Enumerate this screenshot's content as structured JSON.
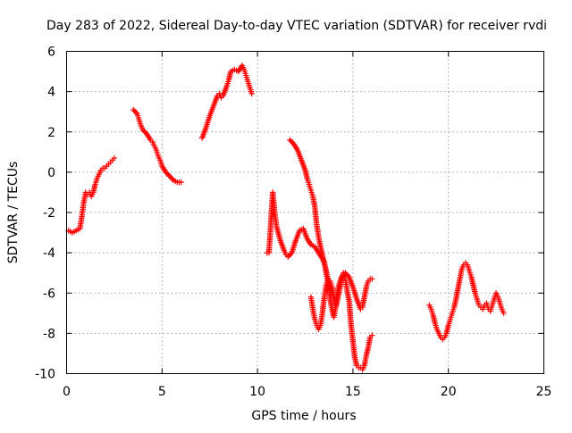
{
  "chart_data": {
    "type": "scatter",
    "title": "Day 283 of 2022, Sidereal Day-to-day VTEC variation (SDTVAR) for receiver rvdi",
    "xlabel": "GPS time / hours",
    "ylabel": "SDTVAR / TECUs",
    "xlim": [
      0,
      25
    ],
    "ylim": [
      -10,
      6
    ],
    "xticks": [
      "0",
      "5",
      "10",
      "15",
      "20",
      "25"
    ],
    "yticks": [
      "-10",
      "-8",
      "-6",
      "-4",
      "-2",
      "0",
      "2",
      "4",
      "6"
    ],
    "grid": true,
    "legend": "none",
    "marker": "plus",
    "color": "#ff0000",
    "series": [
      {
        "x": [
          0.1,
          0.3,
          0.5,
          0.7,
          0.8,
          0.9,
          1.0,
          1.1,
          1.2,
          1.3,
          1.4,
          1.5,
          1.6,
          1.7,
          1.8,
          1.9,
          2.0,
          2.1,
          2.2,
          2.3,
          2.4,
          2.5
        ],
        "y": [
          -2.9,
          -3.0,
          -2.9,
          -2.8,
          -2.2,
          -1.5,
          -1.0,
          -1.1,
          -1.0,
          -1.2,
          -1.0,
          -0.6,
          -0.3,
          -0.1,
          0.1,
          0.2,
          0.2,
          0.3,
          0.4,
          0.5,
          0.6,
          0.7
        ]
      },
      {
        "x": [
          3.5,
          3.7,
          3.8,
          3.9,
          4.0,
          4.2,
          4.4,
          4.5,
          4.6,
          4.7,
          4.8,
          4.9,
          5.0,
          5.2,
          5.4,
          5.6,
          5.8,
          6.0
        ],
        "y": [
          3.1,
          2.9,
          2.6,
          2.3,
          2.1,
          1.9,
          1.6,
          1.5,
          1.3,
          1.1,
          0.8,
          0.6,
          0.3,
          0.0,
          -0.2,
          -0.4,
          -0.5,
          -0.5
        ]
      },
      {
        "x": [
          7.1,
          7.3,
          7.5,
          7.7,
          7.9,
          8.0,
          8.1,
          8.2,
          8.4,
          8.5,
          8.6,
          8.8,
          9.0,
          9.2,
          9.3,
          9.4,
          9.5,
          9.6,
          9.7
        ],
        "y": [
          1.7,
          2.2,
          2.8,
          3.3,
          3.8,
          3.9,
          3.7,
          3.8,
          4.3,
          4.6,
          5.0,
          5.1,
          5.0,
          5.3,
          5.1,
          4.8,
          4.5,
          4.2,
          3.9
        ]
      },
      {
        "x": [
          10.5,
          10.6,
          10.8,
          10.9,
          11.0,
          11.2,
          11.4,
          11.5,
          11.6,
          11.8,
          12.0,
          12.2,
          12.4,
          12.6,
          12.8,
          13.0,
          13.2,
          13.4,
          13.5,
          13.6,
          13.7,
          13.8,
          13.9,
          14.0,
          14.1,
          14.2,
          14.4,
          14.5,
          14.6,
          14.7,
          14.8,
          14.9,
          15.0,
          15.1,
          15.2,
          15.3,
          15.4,
          15.5,
          15.6,
          15.7,
          15.8,
          15.9,
          16.0
        ],
        "y": [
          -4.0,
          -4.0,
          -1.0,
          -2.0,
          -2.7,
          -3.4,
          -3.9,
          -4.1,
          -4.2,
          -4.0,
          -3.4,
          -2.9,
          -2.8,
          -3.3,
          -3.6,
          -3.7,
          -4.0,
          -4.3,
          -4.5,
          -4.9,
          -5.5,
          -6.3,
          -6.8,
          -7.2,
          -6.7,
          -6.3,
          -5.4,
          -5.0,
          -5.3,
          -5.9,
          -6.4,
          -7.6,
          -8.4,
          -9.2,
          -9.6,
          -9.7,
          -9.7,
          -9.8,
          -9.6,
          -9.1,
          -8.7,
          -8.2,
          -8.1
        ]
      },
      {
        "x": [
          11.7,
          11.9,
          12.1,
          12.3,
          12.5,
          12.6,
          12.7,
          12.8,
          12.9,
          13.0,
          13.1,
          13.2,
          13.3,
          13.4,
          13.5,
          13.6,
          13.7,
          13.8
        ],
        "y": [
          1.6,
          1.4,
          1.1,
          0.6,
          0.1,
          -0.3,
          -0.6,
          -0.9,
          -1.2,
          -1.7,
          -2.6,
          -3.2,
          -3.7,
          -4.1,
          -4.5,
          -5.0,
          -5.4,
          -5.7
        ]
      },
      {
        "x": [
          12.8,
          12.9,
          13.0,
          13.1,
          13.2,
          13.3,
          13.4,
          13.5,
          13.6,
          13.7,
          13.8,
          13.9,
          14.0,
          14.1,
          14.2,
          14.4,
          14.6,
          14.8,
          15.0,
          15.2,
          15.4,
          15.5,
          15.6,
          15.7,
          15.8,
          15.9,
          16.0
        ],
        "y": [
          -6.2,
          -6.8,
          -7.3,
          -7.6,
          -7.8,
          -7.6,
          -7.0,
          -6.2,
          -5.6,
          -5.3,
          -5.4,
          -5.7,
          -6.2,
          -6.6,
          -5.8,
          -5.2,
          -5.0,
          -5.2,
          -5.7,
          -6.3,
          -6.8,
          -6.7,
          -6.2,
          -5.7,
          -5.4,
          -5.3,
          -5.3
        ]
      },
      {
        "x": [
          19.0,
          19.1,
          19.2,
          19.3,
          19.4,
          19.5,
          19.6,
          19.7,
          19.8,
          19.9,
          20.0,
          20.1,
          20.2,
          20.3,
          20.4,
          20.5,
          20.6,
          20.7,
          20.8,
          20.9,
          21.0,
          21.1,
          21.2,
          21.3,
          21.4,
          21.5,
          21.6,
          21.7,
          21.8,
          21.9,
          22.0,
          22.1,
          22.2,
          22.3,
          22.4,
          22.5,
          22.6,
          22.7,
          22.8,
          22.9
        ],
        "y": [
          -6.6,
          -6.8,
          -7.1,
          -7.5,
          -7.8,
          -8.0,
          -8.2,
          -8.3,
          -8.2,
          -8.0,
          -7.6,
          -7.3,
          -7.0,
          -6.7,
          -6.3,
          -5.8,
          -5.3,
          -4.8,
          -4.6,
          -4.5,
          -4.6,
          -4.9,
          -5.2,
          -5.6,
          -6.0,
          -6.3,
          -6.6,
          -6.7,
          -6.8,
          -6.6,
          -6.5,
          -6.8,
          -6.9,
          -6.6,
          -6.3,
          -6.0,
          -6.2,
          -6.5,
          -6.8,
          -7.0
        ]
      }
    ]
  }
}
